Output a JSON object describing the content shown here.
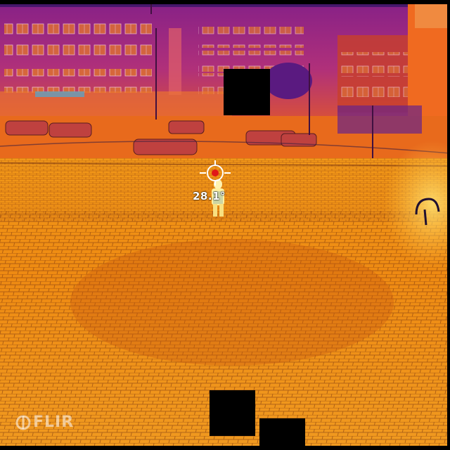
{
  "scene": {
    "kind": "thermal-camera-capture",
    "palette": [
      "#1a0a3a",
      "#5a1a7a",
      "#9a2a8a",
      "#d8402a",
      "#f07010",
      "#f8a020",
      "#ffd060",
      "#ffffff"
    ]
  },
  "overlay": {
    "temperature_readout": "28.1°",
    "logo_text": "FLIR",
    "spot_meter_icon": "crosshair-icon"
  }
}
